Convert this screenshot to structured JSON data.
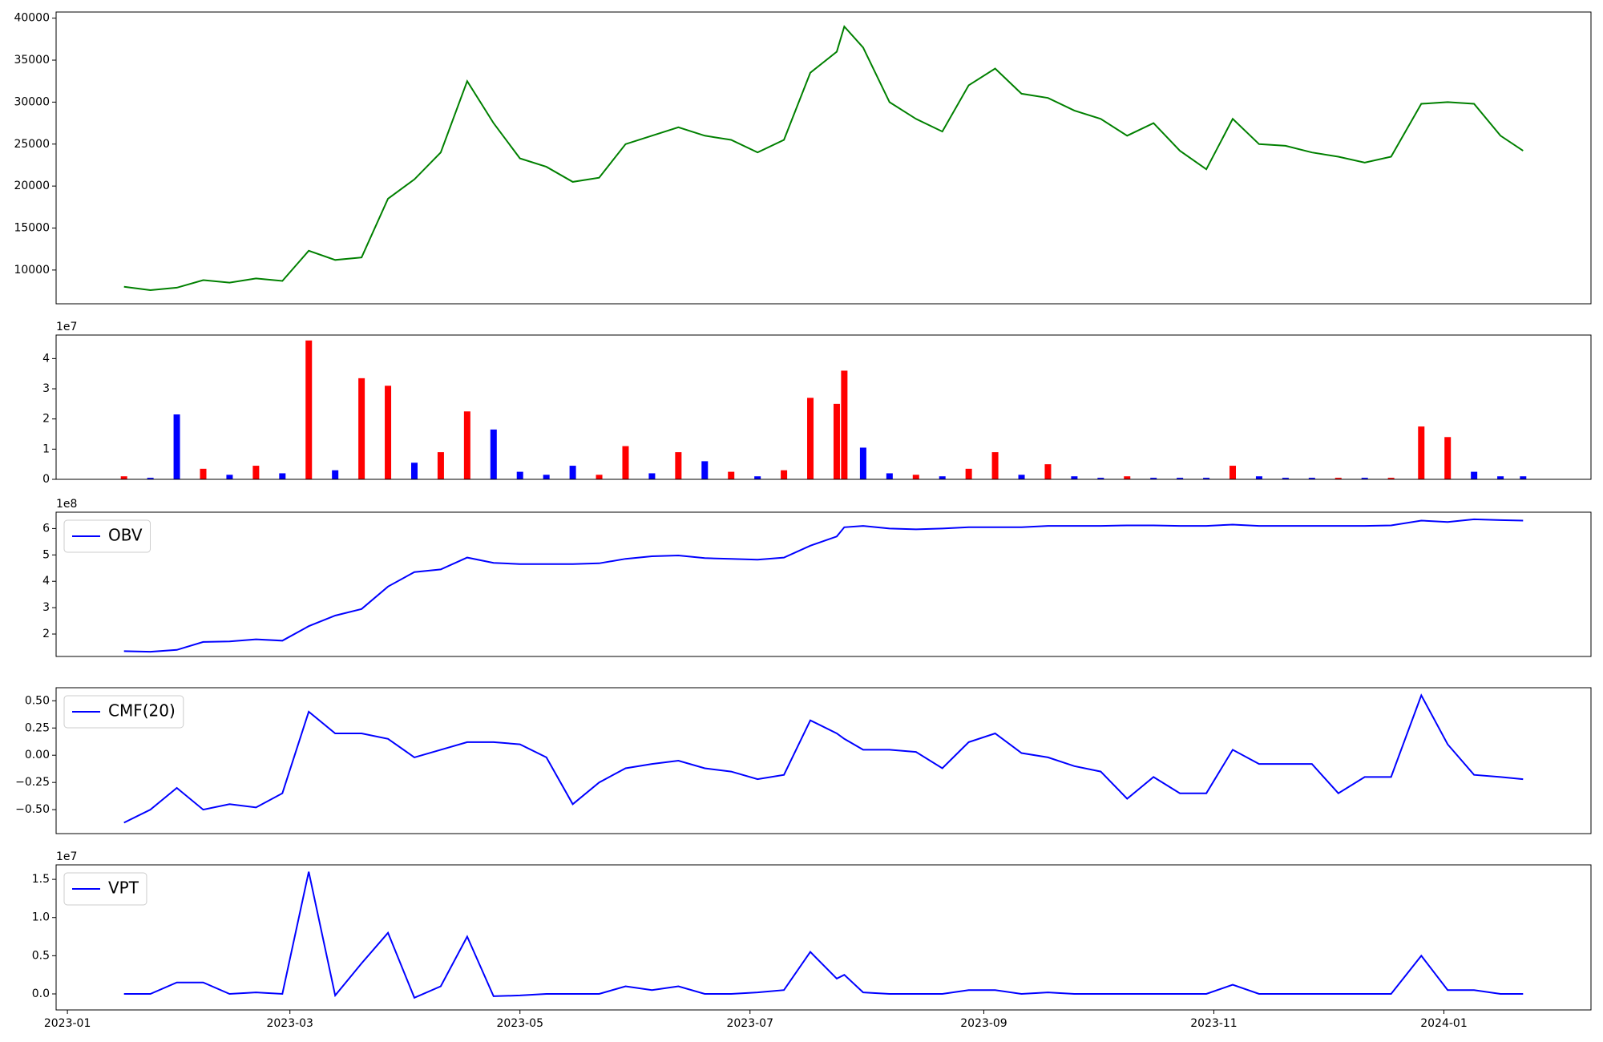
{
  "chart_data": [
    {
      "type": "line",
      "x": [
        "2023-01-16",
        "2023-01-23",
        "2023-01-30",
        "2023-02-06",
        "2023-02-13",
        "2023-02-20",
        "2023-02-27",
        "2023-03-06",
        "2023-03-13",
        "2023-03-20",
        "2023-03-27",
        "2023-04-03",
        "2023-04-10",
        "2023-04-17",
        "2023-04-24",
        "2023-05-01",
        "2023-05-08",
        "2023-05-15",
        "2023-05-22",
        "2023-05-29",
        "2023-06-05",
        "2023-06-12",
        "2023-06-19",
        "2023-06-26",
        "2023-07-03",
        "2023-07-10",
        "2023-07-17",
        "2023-07-24",
        "2023-07-26",
        "2023-07-31",
        "2023-08-07",
        "2023-08-14",
        "2023-08-21",
        "2023-08-28",
        "2023-09-04",
        "2023-09-11",
        "2023-09-18",
        "2023-09-25",
        "2023-10-02",
        "2023-10-09",
        "2023-10-16",
        "2023-10-23",
        "2023-10-30",
        "2023-11-06",
        "2023-11-13",
        "2023-11-20",
        "2023-11-27",
        "2023-12-04",
        "2023-12-11",
        "2023-12-18",
        "2023-12-26",
        "2024-01-02",
        "2024-01-09",
        "2024-01-16",
        "2024-01-22"
      ],
      "values": [
        8000,
        7600,
        7900,
        8800,
        8500,
        9000,
        8700,
        12300,
        11200,
        11500,
        18500,
        20800,
        24000,
        32500,
        27500,
        23300,
        22300,
        20500,
        21000,
        25000,
        26000,
        27000,
        26000,
        25500,
        24000,
        25500,
        33500,
        36000,
        39000,
        36500,
        30000,
        28000,
        26500,
        32000,
        34000,
        31000,
        30500,
        29000,
        28000,
        26000,
        27500,
        24200,
        22000,
        28000,
        25000,
        24800,
        24000,
        23500,
        22800,
        23500,
        29800,
        30000,
        29800,
        26000,
        24200
      ],
      "color": "#008000",
      "xlim": [
        "2022-12-29",
        "2024-02-09"
      ],
      "ylim": [
        5980,
        40730
      ],
      "yticks": [
        10000,
        15000,
        20000,
        25000,
        30000,
        35000,
        40000
      ]
    },
    {
      "type": "bar",
      "x": [
        "2023-01-16",
        "2023-01-23",
        "2023-01-30",
        "2023-02-06",
        "2023-02-13",
        "2023-02-20",
        "2023-02-27",
        "2023-03-06",
        "2023-03-13",
        "2023-03-20",
        "2023-03-27",
        "2023-04-03",
        "2023-04-10",
        "2023-04-17",
        "2023-04-24",
        "2023-05-01",
        "2023-05-08",
        "2023-05-15",
        "2023-05-22",
        "2023-05-29",
        "2023-06-05",
        "2023-06-12",
        "2023-06-19",
        "2023-06-26",
        "2023-07-03",
        "2023-07-10",
        "2023-07-17",
        "2023-07-24",
        "2023-07-26",
        "2023-07-31",
        "2023-08-07",
        "2023-08-14",
        "2023-08-21",
        "2023-08-28",
        "2023-09-04",
        "2023-09-11",
        "2023-09-18",
        "2023-09-25",
        "2023-10-02",
        "2023-10-09",
        "2023-10-16",
        "2023-10-23",
        "2023-10-30",
        "2023-11-06",
        "2023-11-13",
        "2023-11-20",
        "2023-11-27",
        "2023-12-04",
        "2023-12-11",
        "2023-12-18",
        "2023-12-26",
        "2024-01-02",
        "2024-01-09",
        "2024-01-16",
        "2024-01-22"
      ],
      "values": [
        0.1,
        0.05,
        2.15,
        0.35,
        0.15,
        0.45,
        0.2,
        4.6,
        0.3,
        3.35,
        3.1,
        0.55,
        0.9,
        2.25,
        1.65,
        0.25,
        0.15,
        0.45,
        0.15,
        1.1,
        0.2,
        0.9,
        0.6,
        0.25,
        0.1,
        0.3,
        2.7,
        2.5,
        3.6,
        1.05,
        0.2,
        0.15,
        0.1,
        0.35,
        0.9,
        0.15,
        0.5,
        0.1,
        0.05,
        0.1,
        0.05,
        0.05,
        0.05,
        0.45,
        0.1,
        0.05,
        0.05,
        0.05,
        0.05,
        0.05,
        1.75,
        1.4,
        0.25,
        0.1,
        0.1
      ],
      "colors": [
        "#ff0000",
        "#0000ff",
        "#0000ff",
        "#ff0000",
        "#0000ff",
        "#ff0000",
        "#0000ff",
        "#ff0000",
        "#0000ff",
        "#ff0000",
        "#ff0000",
        "#0000ff",
        "#ff0000",
        "#ff0000",
        "#0000ff",
        "#0000ff",
        "#0000ff",
        "#0000ff",
        "#ff0000",
        "#ff0000",
        "#0000ff",
        "#ff0000",
        "#0000ff",
        "#ff0000",
        "#0000ff",
        "#ff0000",
        "#ff0000",
        "#ff0000",
        "#ff0000",
        "#0000ff",
        "#0000ff",
        "#ff0000",
        "#0000ff",
        "#ff0000",
        "#ff0000",
        "#0000ff",
        "#ff0000",
        "#0000ff",
        "#0000ff",
        "#ff0000",
        "#0000ff",
        "#0000ff",
        "#0000ff",
        "#ff0000",
        "#0000ff",
        "#0000ff",
        "#0000ff",
        "#ff0000",
        "#0000ff",
        "#ff0000",
        "#ff0000",
        "#ff0000",
        "#0000ff",
        "#0000ff",
        "#0000ff"
      ],
      "offset_label": "1e7",
      "xlim": [
        "2022-12-29",
        "2024-02-09"
      ],
      "ylim": [
        0,
        4.78
      ],
      "yticks": [
        0,
        1,
        2,
        3,
        4
      ]
    },
    {
      "type": "line",
      "x": [
        "2023-01-16",
        "2023-01-23",
        "2023-01-30",
        "2023-02-06",
        "2023-02-13",
        "2023-02-20",
        "2023-02-27",
        "2023-03-06",
        "2023-03-13",
        "2023-03-20",
        "2023-03-27",
        "2023-04-03",
        "2023-04-10",
        "2023-04-17",
        "2023-04-24",
        "2023-05-01",
        "2023-05-08",
        "2023-05-15",
        "2023-05-22",
        "2023-05-29",
        "2023-06-05",
        "2023-06-12",
        "2023-06-19",
        "2023-06-26",
        "2023-07-03",
        "2023-07-10",
        "2023-07-17",
        "2023-07-24",
        "2023-07-26",
        "2023-07-31",
        "2023-08-07",
        "2023-08-14",
        "2023-08-21",
        "2023-08-28",
        "2023-09-04",
        "2023-09-11",
        "2023-09-18",
        "2023-09-25",
        "2023-10-02",
        "2023-10-09",
        "2023-10-16",
        "2023-10-23",
        "2023-10-30",
        "2023-11-06",
        "2023-11-13",
        "2023-11-20",
        "2023-11-27",
        "2023-12-04",
        "2023-12-11",
        "2023-12-18",
        "2023-12-26",
        "2024-01-02",
        "2024-01-09",
        "2024-01-16",
        "2024-01-22"
      ],
      "series": [
        {
          "name": "OBV",
          "color": "#0000ff",
          "values": [
            1.35,
            1.33,
            1.4,
            1.7,
            1.72,
            1.8,
            1.75,
            2.3,
            2.7,
            2.95,
            3.8,
            4.35,
            4.45,
            4.9,
            4.7,
            4.65,
            4.65,
            4.65,
            4.68,
            4.85,
            4.95,
            4.98,
            4.88,
            4.85,
            4.82,
            4.9,
            5.35,
            5.7,
            6.05,
            6.1,
            6.0,
            5.97,
            6.0,
            6.05,
            6.05,
            6.05,
            6.1,
            6.1,
            6.1,
            6.12,
            6.12,
            6.1,
            6.1,
            6.15,
            6.1,
            6.1,
            6.1,
            6.1,
            6.1,
            6.12,
            6.3,
            6.25,
            6.35,
            6.32,
            6.3
          ]
        }
      ],
      "legend": "upper left",
      "offset_label": "1e8",
      "xlim": [
        "2022-12-29",
        "2024-02-09"
      ],
      "ylim": [
        1.15,
        6.62
      ],
      "yticks": [
        2,
        3,
        4,
        5,
        6
      ]
    },
    {
      "type": "line",
      "x": [
        "2023-01-16",
        "2023-01-23",
        "2023-01-30",
        "2023-02-06",
        "2023-02-13",
        "2023-02-20",
        "2023-02-27",
        "2023-03-06",
        "2023-03-13",
        "2023-03-20",
        "2023-03-27",
        "2023-04-03",
        "2023-04-10",
        "2023-04-17",
        "2023-04-24",
        "2023-05-01",
        "2023-05-08",
        "2023-05-15",
        "2023-05-22",
        "2023-05-29",
        "2023-06-05",
        "2023-06-12",
        "2023-06-19",
        "2023-06-26",
        "2023-07-03",
        "2023-07-10",
        "2023-07-17",
        "2023-07-24",
        "2023-07-26",
        "2023-07-31",
        "2023-08-07",
        "2023-08-14",
        "2023-08-21",
        "2023-08-28",
        "2023-09-04",
        "2023-09-11",
        "2023-09-18",
        "2023-09-25",
        "2023-10-02",
        "2023-10-09",
        "2023-10-16",
        "2023-10-23",
        "2023-10-30",
        "2023-11-06",
        "2023-11-13",
        "2023-11-20",
        "2023-11-27",
        "2023-12-04",
        "2023-12-11",
        "2023-12-18",
        "2023-12-26",
        "2024-01-02",
        "2024-01-09",
        "2024-01-16",
        "2024-01-22"
      ],
      "series": [
        {
          "name": "CMF(20)",
          "color": "#0000ff",
          "values": [
            -0.62,
            -0.5,
            -0.3,
            -0.5,
            -0.45,
            -0.48,
            -0.35,
            0.4,
            0.2,
            0.2,
            0.15,
            -0.02,
            0.05,
            0.12,
            0.12,
            0.1,
            -0.02,
            -0.45,
            -0.25,
            -0.12,
            -0.08,
            -0.05,
            -0.12,
            -0.15,
            -0.22,
            -0.18,
            0.32,
            0.2,
            0.15,
            0.05,
            0.05,
            0.03,
            -0.12,
            0.12,
            0.2,
            0.02,
            -0.02,
            -0.1,
            -0.15,
            -0.4,
            -0.2,
            -0.35,
            -0.35,
            0.05,
            -0.08,
            -0.08,
            -0.08,
            -0.35,
            -0.2,
            -0.2,
            0.55,
            0.1,
            -0.18,
            -0.2,
            -0.22
          ]
        }
      ],
      "legend": "upper left",
      "xlim": [
        "2022-12-29",
        "2024-02-09"
      ],
      "ylim": [
        -0.72,
        0.62
      ],
      "yticks": [
        {
          "value": -0.5,
          "label": "−0.50"
        },
        {
          "value": -0.25,
          "label": "−0.25"
        },
        {
          "value": 0,
          "label": "0.00"
        },
        {
          "value": 0.25,
          "label": "0.25"
        },
        {
          "value": 0.5,
          "label": "0.50"
        }
      ]
    },
    {
      "type": "line",
      "x": [
        "2023-01-16",
        "2023-01-23",
        "2023-01-30",
        "2023-02-06",
        "2023-02-13",
        "2023-02-20",
        "2023-02-27",
        "2023-03-06",
        "2023-03-13",
        "2023-03-20",
        "2023-03-27",
        "2023-04-03",
        "2023-04-10",
        "2023-04-17",
        "2023-04-24",
        "2023-05-01",
        "2023-05-08",
        "2023-05-15",
        "2023-05-22",
        "2023-05-29",
        "2023-06-05",
        "2023-06-12",
        "2023-06-19",
        "2023-06-26",
        "2023-07-03",
        "2023-07-10",
        "2023-07-17",
        "2023-07-24",
        "2023-07-26",
        "2023-07-31",
        "2023-08-07",
        "2023-08-14",
        "2023-08-21",
        "2023-08-28",
        "2023-09-04",
        "2023-09-11",
        "2023-09-18",
        "2023-09-25",
        "2023-10-02",
        "2023-10-09",
        "2023-10-16",
        "2023-10-23",
        "2023-10-30",
        "2023-11-06",
        "2023-11-13",
        "2023-11-20",
        "2023-11-27",
        "2023-12-04",
        "2023-12-11",
        "2023-12-18",
        "2023-12-26",
        "2024-01-02",
        "2024-01-09",
        "2024-01-16",
        "2024-01-22"
      ],
      "series": [
        {
          "name": "VPT",
          "color": "#0000ff",
          "values": [
            0,
            0,
            0.15,
            0.15,
            0,
            0.02,
            0,
            1.6,
            -0.02,
            0.4,
            0.8,
            -0.05,
            0.1,
            0.75,
            -0.03,
            -0.02,
            0,
            0,
            0,
            0.1,
            0.05,
            0.1,
            0,
            0,
            0.02,
            0.05,
            0.55,
            0.2,
            0.25,
            0.02,
            0,
            0,
            0,
            0.05,
            0.05,
            0,
            0.02,
            0,
            0,
            0,
            0,
            0,
            0,
            0.12,
            0,
            0,
            0,
            0,
            0,
            0,
            0.5,
            0.05,
            0.05,
            0,
            0
          ]
        }
      ],
      "legend": "upper left",
      "offset_label": "1e7",
      "xlim": [
        "2022-12-29",
        "2024-02-09"
      ],
      "ylim": [
        -0.21,
        1.69
      ],
      "yticks": [
        {
          "value": 0,
          "label": "0.0"
        },
        0.5,
        {
          "value": 1,
          "label": "1.0"
        },
        1.5
      ],
      "xticks": [
        "2023-01",
        "2023-03",
        "2023-05",
        "2023-07",
        "2023-09",
        "2023-11",
        "2024-01"
      ]
    }
  ]
}
